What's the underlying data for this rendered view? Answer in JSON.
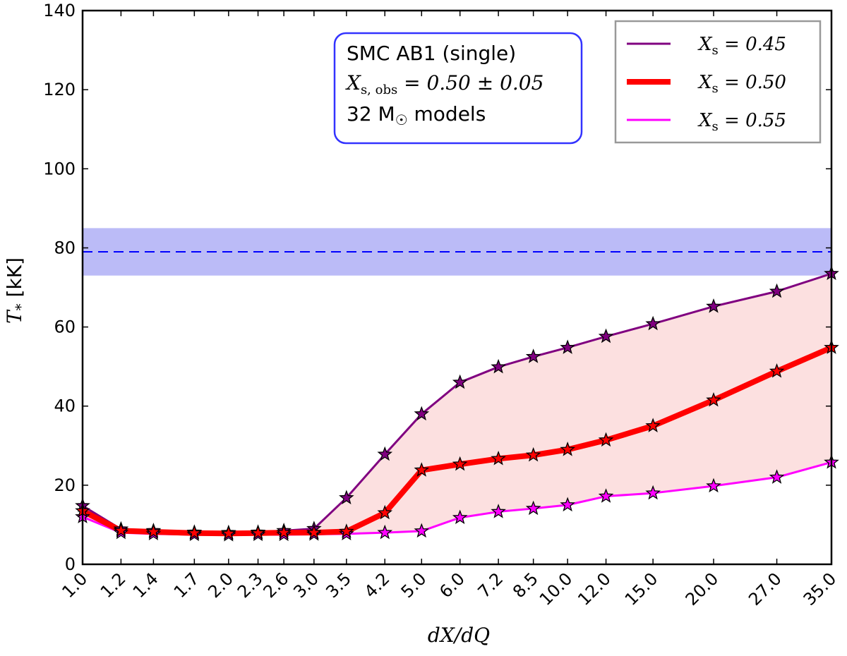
{
  "chart_data": {
    "type": "line",
    "xlabel": "dX/dQ",
    "ylabel": "T_* [kK]",
    "categories": [
      "1.0",
      "1.2",
      "1.4",
      "1.7",
      "2.0",
      "2.3",
      "2.6",
      "3.0",
      "3.5",
      "4.2",
      "5.0",
      "6.0",
      "7.2",
      "8.5",
      "10.0",
      "12.0",
      "15.0",
      "20.0",
      "27.0",
      "35.0"
    ],
    "x_values": [
      1.0,
      1.2,
      1.4,
      1.7,
      2.0,
      2.3,
      2.6,
      3.0,
      3.5,
      4.2,
      5.0,
      6.0,
      7.2,
      8.5,
      10.0,
      12.0,
      15.0,
      20.0,
      27.0,
      35.0
    ],
    "x_scale": "log",
    "ylim": [
      0,
      140
    ],
    "yticks": [
      0,
      20,
      40,
      60,
      80,
      100,
      120,
      140
    ],
    "series": [
      {
        "name": "X_s = 0.45",
        "color": "#800080",
        "linewidth": "thin",
        "values": [
          14.8,
          8.9,
          8.5,
          8.1,
          8.0,
          8.1,
          8.5,
          9.0,
          16.8,
          27.8,
          38.0,
          46.0,
          49.9,
          52.5,
          54.8,
          57.6,
          60.8,
          65.2,
          69.0,
          73.5
        ]
      },
      {
        "name": "X_s = 0.50",
        "color": "#ff0000",
        "linewidth": "thick",
        "values": [
          13.5,
          8.5,
          8.2,
          7.9,
          7.8,
          7.9,
          8.0,
          8.0,
          8.3,
          13.0,
          23.8,
          25.3,
          26.7,
          27.6,
          29.0,
          31.4,
          35.0,
          41.5,
          48.8,
          54.8
        ]
      },
      {
        "name": "X_s = 0.55",
        "color": "#ff00ff",
        "linewidth": "thin",
        "values": [
          12.0,
          8.0,
          7.7,
          7.5,
          7.4,
          7.5,
          7.5,
          7.6,
          7.7,
          8.0,
          8.4,
          11.8,
          13.3,
          14.1,
          15.0,
          17.2,
          18.0,
          19.8,
          22.0,
          25.8
        ]
      }
    ],
    "shaded_region": {
      "between": [
        "X_s = 0.45",
        "X_s = 0.55"
      ],
      "color": "#fce0e0"
    },
    "observed_band": {
      "center": 79,
      "low": 73,
      "high": 85,
      "color": "#0000ff",
      "band_color": "#bbbbf7"
    },
    "info_box": {
      "line1": "SMC AB1 (single)",
      "line2": "X_s, obs = 0.50 ± 0.05",
      "line3": "32 M☉ models",
      "border_color": "#3333ff"
    },
    "legend": {
      "position": "top-right",
      "entries": [
        "X_s = 0.45",
        "X_s = 0.50",
        "X_s = 0.55"
      ]
    },
    "marker": "star"
  }
}
